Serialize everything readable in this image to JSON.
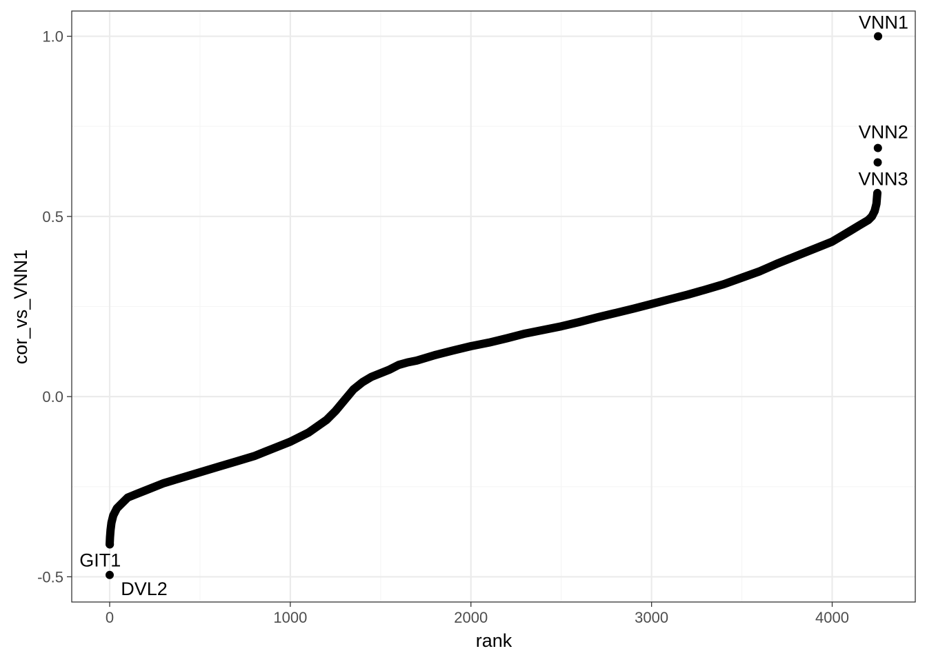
{
  "chart_data": {
    "type": "scatter",
    "title": "",
    "xlabel": "rank",
    "ylabel": "cor_vs_VNN1",
    "xlim": [
      -210,
      4460
    ],
    "ylim": [
      -0.57,
      1.07
    ],
    "x_ticks": [
      0,
      1000,
      2000,
      3000,
      4000
    ],
    "x_tick_labels": [
      "0",
      "1000",
      "2000",
      "3000",
      "4000"
    ],
    "y_ticks": [
      -0.5,
      0.0,
      0.5,
      1.0
    ],
    "y_tick_labels": [
      "-0.5",
      "0.0",
      "0.5",
      "1.0"
    ],
    "grid": true,
    "n_points": 4255,
    "curve": {
      "x": [
        0,
        2,
        5,
        10,
        20,
        40,
        60,
        100,
        150,
        200,
        300,
        400,
        500,
        600,
        700,
        800,
        900,
        1000,
        1100,
        1200,
        1250,
        1300,
        1350,
        1400,
        1450,
        1500,
        1550,
        1600,
        1650,
        1700,
        1800,
        1900,
        2000,
        2100,
        2200,
        2300,
        2400,
        2500,
        2600,
        2700,
        2800,
        2900,
        3000,
        3100,
        3200,
        3300,
        3400,
        3500,
        3600,
        3700,
        3800,
        3900,
        4000,
        4050,
        4100,
        4150,
        4200,
        4220,
        4235,
        4245,
        4250
      ],
      "y": [
        -0.41,
        -0.39,
        -0.37,
        -0.35,
        -0.33,
        -0.31,
        -0.3,
        -0.28,
        -0.27,
        -0.26,
        -0.24,
        -0.225,
        -0.21,
        -0.195,
        -0.18,
        -0.165,
        -0.145,
        -0.125,
        -0.1,
        -0.065,
        -0.04,
        -0.01,
        0.02,
        0.04,
        0.055,
        0.065,
        0.075,
        0.088,
        0.095,
        0.1,
        0.115,
        0.128,
        0.14,
        0.15,
        0.162,
        0.175,
        0.185,
        0.195,
        0.207,
        0.22,
        0.232,
        0.244,
        0.257,
        0.27,
        0.283,
        0.297,
        0.312,
        0.33,
        0.348,
        0.37,
        0.39,
        0.41,
        0.43,
        0.445,
        0.46,
        0.475,
        0.49,
        0.5,
        0.515,
        0.535,
        0.565
      ]
    },
    "points": [
      {
        "x": 4254,
        "y": 1.0,
        "label": "VNN1"
      },
      {
        "x": 4253,
        "y": 0.69,
        "label": "VNN2"
      },
      {
        "x": 4252,
        "y": 0.65,
        "label": "VNN3"
      },
      {
        "x": 1,
        "y": -0.41,
        "label": "GIT1"
      },
      {
        "x": 0,
        "y": -0.495,
        "label": "DVL2"
      }
    ],
    "point_color": "#000000",
    "panel_border_color": "#333333",
    "grid_major_color": "#ebebeb",
    "grid_minor_color": "#f5f5f5"
  }
}
